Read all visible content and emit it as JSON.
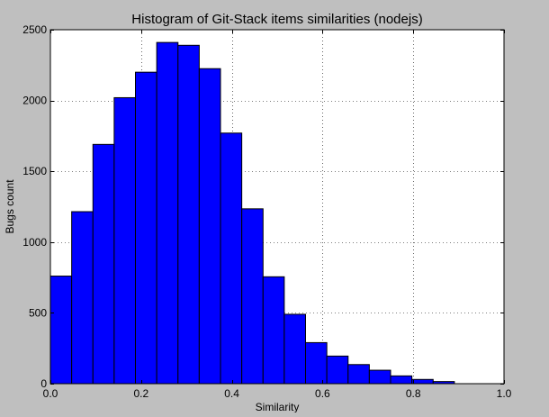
{
  "chart_data": {
    "type": "bar",
    "title": "Histogram of Git-Stack items similarities (nodejs)",
    "xlabel": "Similarity",
    "ylabel": "Bugs count",
    "xlim": [
      0.0,
      1.0
    ],
    "ylim": [
      0,
      2500
    ],
    "xticks": [
      "0.0",
      "0.2",
      "0.4",
      "0.6",
      "0.8",
      "1.0"
    ],
    "yticks": [
      "0",
      "500",
      "1000",
      "1500",
      "2000",
      "2500"
    ],
    "grid": true,
    "bins": [
      [
        0.0,
        0.0469,
        760
      ],
      [
        0.0469,
        0.0938,
        1215
      ],
      [
        0.0938,
        0.1406,
        1690
      ],
      [
        0.1406,
        0.1875,
        2020
      ],
      [
        0.1875,
        0.2344,
        2200
      ],
      [
        0.2344,
        0.2813,
        2410
      ],
      [
        0.2813,
        0.3281,
        2390
      ],
      [
        0.3281,
        0.375,
        2225
      ],
      [
        0.375,
        0.4219,
        1770
      ],
      [
        0.4219,
        0.4688,
        1235
      ],
      [
        0.4688,
        0.5156,
        755
      ],
      [
        0.5156,
        0.5625,
        490
      ],
      [
        0.5625,
        0.6094,
        290
      ],
      [
        0.6094,
        0.6563,
        195
      ],
      [
        0.6563,
        0.7031,
        135
      ],
      [
        0.7031,
        0.75,
        95
      ],
      [
        0.75,
        0.7969,
        55
      ],
      [
        0.7969,
        0.8438,
        30
      ],
      [
        0.8438,
        0.8906,
        15
      ]
    ],
    "bar_color": "#0000ff",
    "edge_color": "#000000",
    "plot_background": "#ffffff",
    "figure_background": "#bfbfbf"
  }
}
